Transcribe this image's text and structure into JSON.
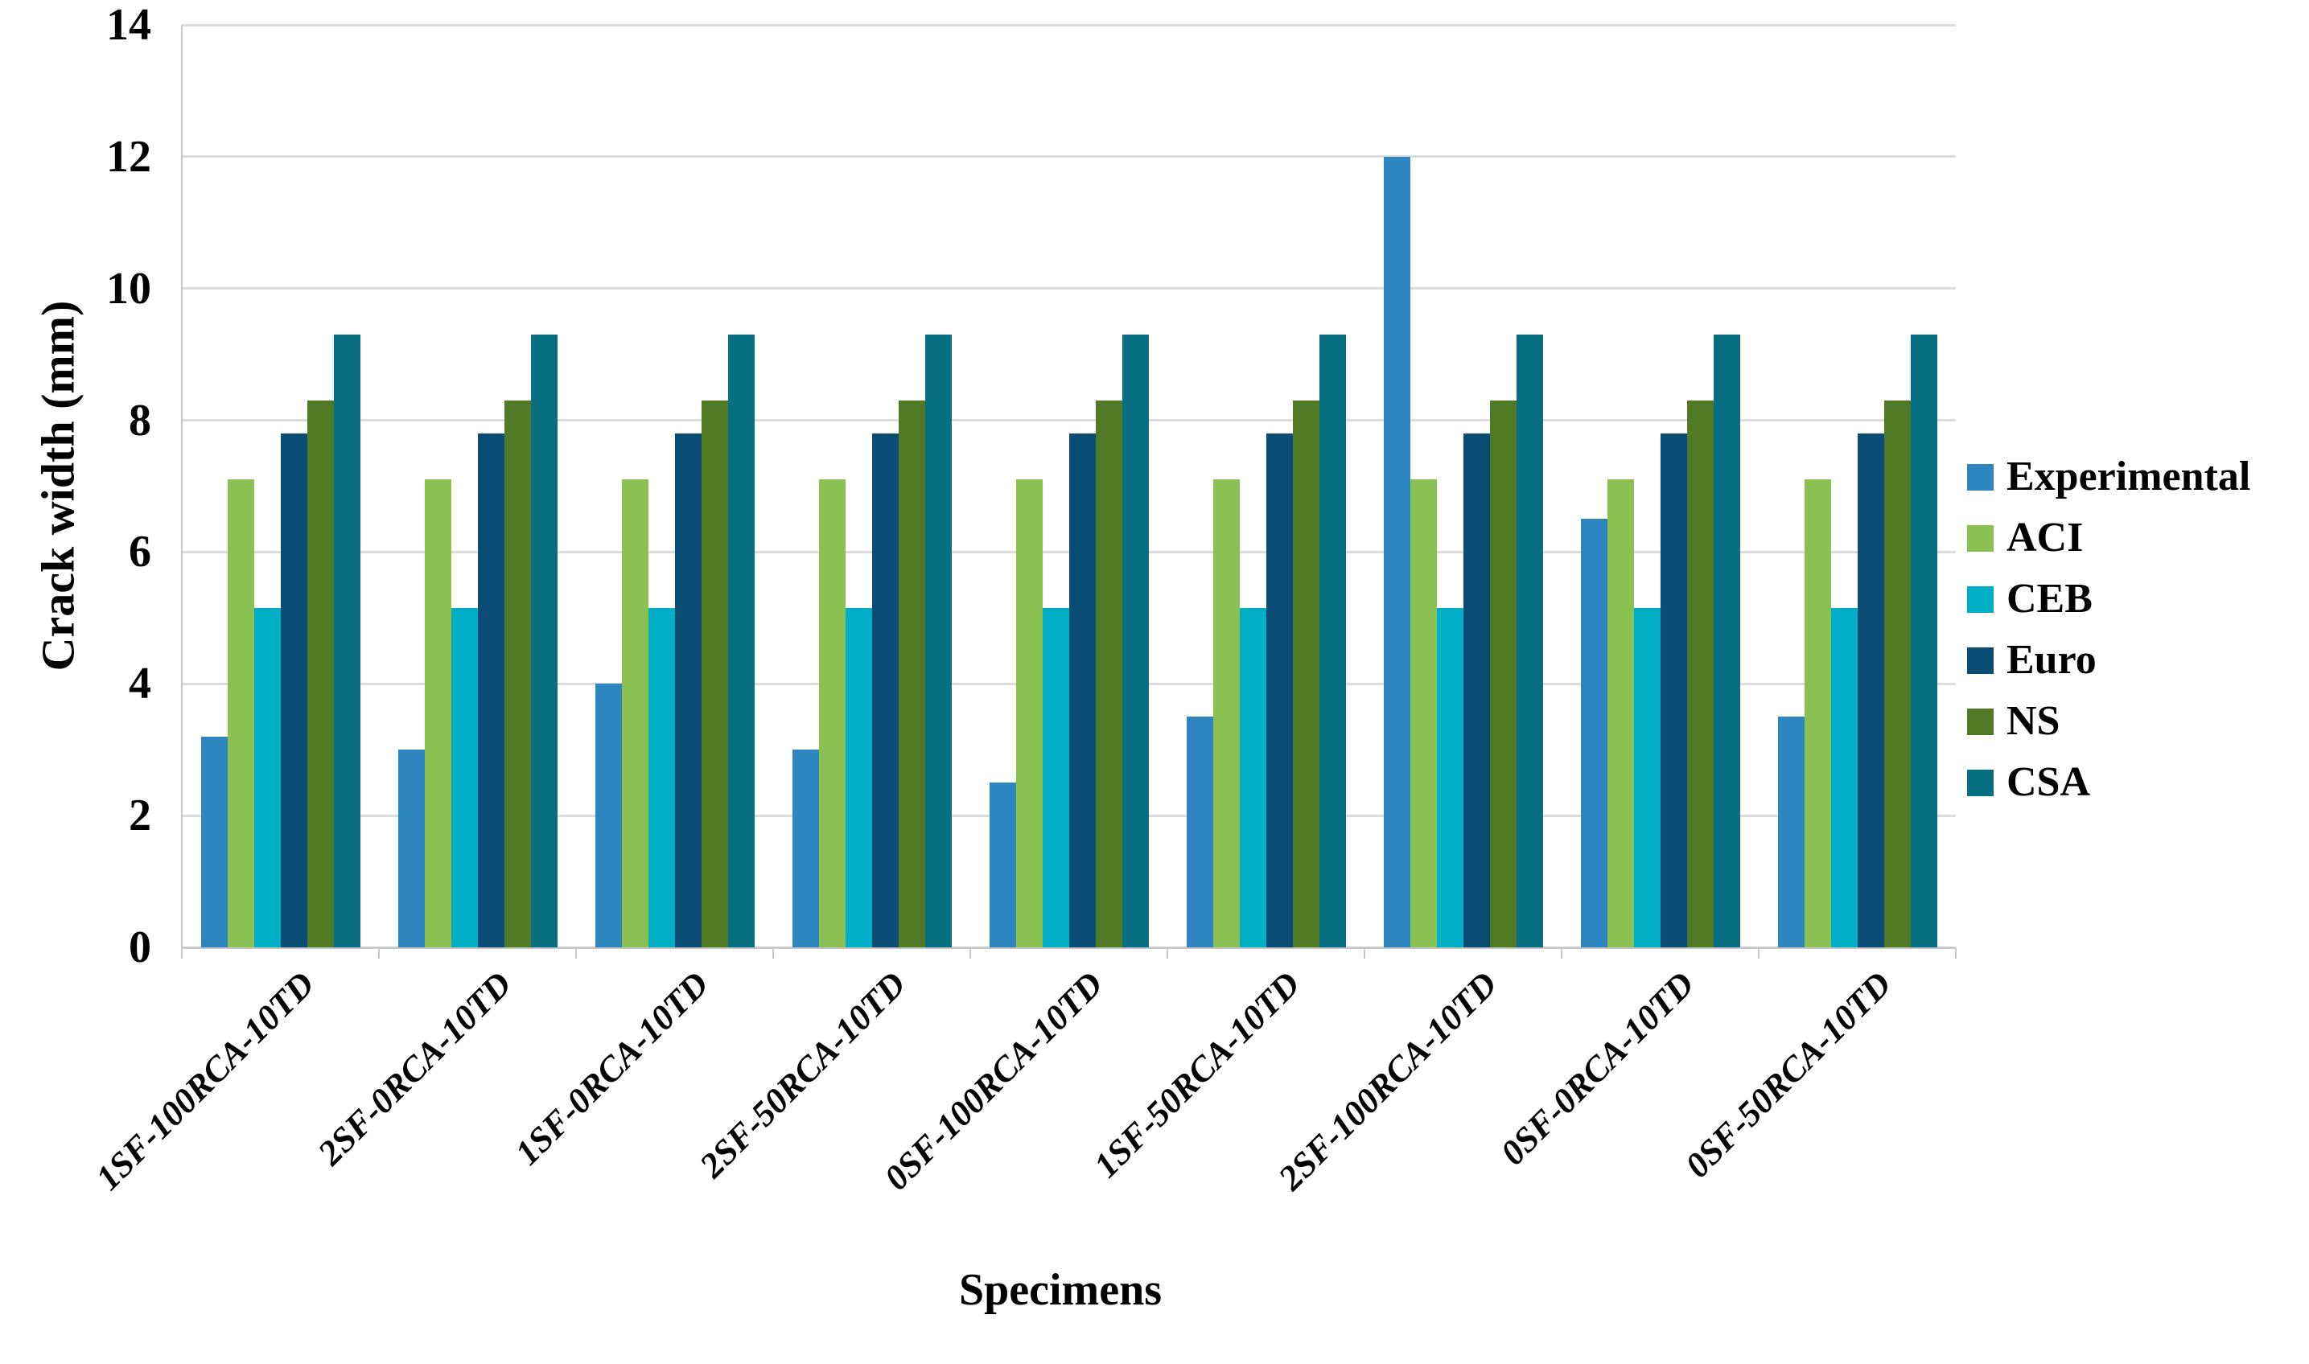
{
  "chart_data": {
    "type": "bar",
    "title": "",
    "xlabel": "Specimens",
    "ylabel": "Crack width (mm)",
    "ylim": [
      0,
      14
    ],
    "yticks": [
      0,
      2,
      4,
      6,
      8,
      10,
      12,
      14
    ],
    "grid": true,
    "legend_position": "right",
    "categories": [
      "1SF-100RCA-10TD",
      "2SF-0RCA-10TD",
      "1SF-0RCA-10TD",
      "2SF-50RCA-10TD",
      "0SF-100RCA-10TD",
      "1SF-50RCA-10TD",
      "2SF-100RCA-10TD",
      "0SF-0RCA-10TD",
      "0SF-50RCA-10TD"
    ],
    "series": [
      {
        "name": "Experimental",
        "color": "#2E86C1",
        "values": [
          3.2,
          3.0,
          4.0,
          3.0,
          2.5,
          3.5,
          12.0,
          6.5,
          3.5
        ]
      },
      {
        "name": "ACI",
        "color": "#8BC052",
        "values": [
          7.1,
          7.1,
          7.1,
          7.1,
          7.1,
          7.1,
          7.1,
          7.1,
          7.1
        ]
      },
      {
        "name": "CEB",
        "color": "#00AEC6",
        "values": [
          5.15,
          5.15,
          5.15,
          5.15,
          5.15,
          5.15,
          5.15,
          5.15,
          5.15
        ]
      },
      {
        "name": "Euro",
        "color": "#0A4C74",
        "values": [
          7.8,
          7.8,
          7.8,
          7.8,
          7.8,
          7.8,
          7.8,
          7.8,
          7.8
        ]
      },
      {
        "name": "NS",
        "color": "#517A27",
        "values": [
          8.3,
          8.3,
          8.3,
          8.3,
          8.3,
          8.3,
          8.3,
          8.3,
          8.3
        ]
      },
      {
        "name": "CSA",
        "color": "#086E81",
        "values": [
          9.3,
          9.3,
          9.3,
          9.3,
          9.3,
          9.3,
          9.3,
          9.3,
          9.3
        ]
      }
    ],
    "colors": {
      "gridline": "#dcdcdc",
      "axis": "#c8c8c8",
      "text": "#000000",
      "background": "#ffffff"
    }
  }
}
